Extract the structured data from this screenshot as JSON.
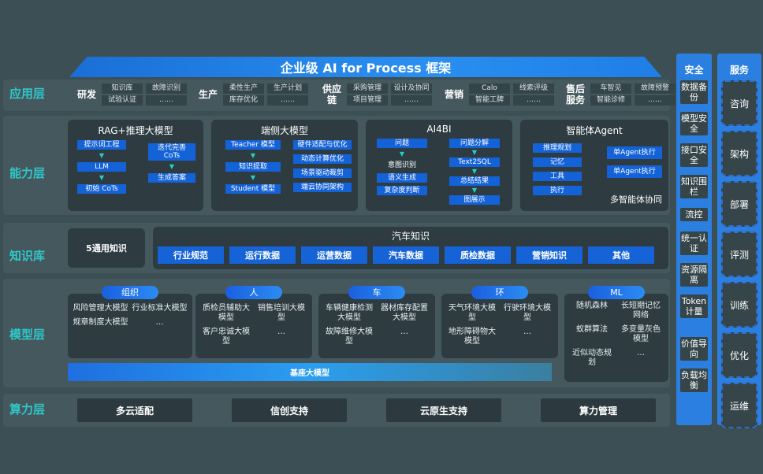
{
  "title": "企业级 AI for Process 框架",
  "layers": {
    "app": "应用层",
    "capability": "能力层",
    "knowledge": "知识库",
    "model": "模型层",
    "compute": "算力层"
  },
  "app": [
    {
      "name": "研发",
      "items": [
        "知识库",
        "故障识别",
        "试验认证",
        "……"
      ]
    },
    {
      "name": "生产",
      "items": [
        "柔性生产",
        "生产计划",
        "库存优化",
        "……"
      ]
    },
    {
      "name": "供应链",
      "items": [
        "采购管理",
        "设计及协同",
        "项目管理",
        "……"
      ]
    },
    {
      "name": "营销",
      "items": [
        "Calo",
        "线索评级",
        "智能工牌",
        "……"
      ]
    },
    {
      "name": "售后服务",
      "items": [
        "车智见",
        "故障预警",
        "智能诊修",
        "……"
      ]
    }
  ],
  "capability": [
    {
      "title": "RAG+推理大模型",
      "left": [
        {
          "label": "提示词工程",
          "style": "box",
          "arrow_after": true
        },
        {
          "label": "LLM",
          "style": "box",
          "arrow_after": true
        },
        {
          "label": "初始 CoTs",
          "style": "box"
        }
      ],
      "right": [
        {
          "label": "迭代完善 CoTs",
          "style": "box",
          "arrow_after": true
        },
        {
          "label": "生成答案",
          "style": "box"
        }
      ]
    },
    {
      "title": "端侧大模型",
      "left": [
        {
          "label": "Teacher 模型",
          "style": "box",
          "arrow_after": true
        },
        {
          "label": "知识提取",
          "style": "box",
          "arrow_after": true
        },
        {
          "label": "Student 模型",
          "style": "box"
        }
      ],
      "right": [
        {
          "label": "硬件适配与优化",
          "style": "box"
        },
        {
          "label": "动态计算优化",
          "style": "box"
        },
        {
          "label": "场景驱动裁剪",
          "style": "box"
        },
        {
          "label": "端云协同架构",
          "style": "box"
        }
      ]
    },
    {
      "title": "AI4BI",
      "left": [
        {
          "label": "问题",
          "style": "box",
          "arrow_after": true
        },
        {
          "label": "意图识别",
          "style": "plain"
        },
        {
          "label": "语义生成",
          "style": "box"
        },
        {
          "label": "复杂度判断",
          "style": "box"
        }
      ],
      "right": [
        {
          "label": "问题分解",
          "style": "box",
          "arrow_after": true
        },
        {
          "label": "Text2SQL",
          "style": "box",
          "arrow_after": true
        },
        {
          "label": "总结结果",
          "style": "box",
          "arrow_after": true
        },
        {
          "label": "图展示",
          "style": "box"
        }
      ]
    },
    {
      "title": "智能体Agent",
      "left": [
        {
          "label": "推理规划",
          "style": "box"
        },
        {
          "label": "记忆",
          "style": "box"
        },
        {
          "label": "工具",
          "style": "box"
        },
        {
          "label": "执行",
          "style": "box"
        }
      ],
      "right": [
        {
          "label": "单Agent执行",
          "style": "box"
        },
        {
          "label": "单Agent执行",
          "style": "box"
        }
      ],
      "caption": "多智能体协同"
    }
  ],
  "knowledge": {
    "general": "5通用知识",
    "auto_title": "汽车知识",
    "items": [
      "行业规范",
      "运行数据",
      "运营数据",
      "汽车数据",
      "质检数据",
      "营销知识",
      "其他"
    ]
  },
  "model": {
    "groups": [
      {
        "name": "组织",
        "items": [
          "风险管理大模型",
          "行业标准大模型",
          "规章制度大模型",
          "…"
        ]
      },
      {
        "name": "人",
        "items": [
          "质检员辅助大模型",
          "销售培训大模型",
          "客户忠诚大模型",
          "…"
        ]
      },
      {
        "name": "车",
        "items": [
          "车辆健康检测大模型",
          "器材库存配置大模型",
          "故障维修大模型",
          "…"
        ]
      },
      {
        "name": "环",
        "items": [
          "天气环境大模型",
          "行驶环境大模型",
          "地形障碍物大模型",
          "…"
        ]
      },
      {
        "name": "ML",
        "items": [
          "随机森林",
          "长短期记忆网络",
          "蚁群算法",
          "多变量灰色模型",
          "近似动态规划",
          "…"
        ]
      }
    ],
    "base": "基座大模型"
  },
  "compute": [
    "多云适配",
    "信创支持",
    "云原生支持",
    "算力管理"
  ],
  "security": {
    "title": "安全",
    "items": [
      "数据备份",
      "模型安全",
      "接口安全",
      "知识围栏",
      "流控",
      "统一认证",
      "资源隔离",
      "Token计量",
      "价值导向",
      "负载均衡"
    ]
  },
  "service": {
    "title": "服务",
    "items": [
      "咨询",
      "架构",
      "部署",
      "评测",
      "训练",
      "优化",
      "运维"
    ]
  }
}
